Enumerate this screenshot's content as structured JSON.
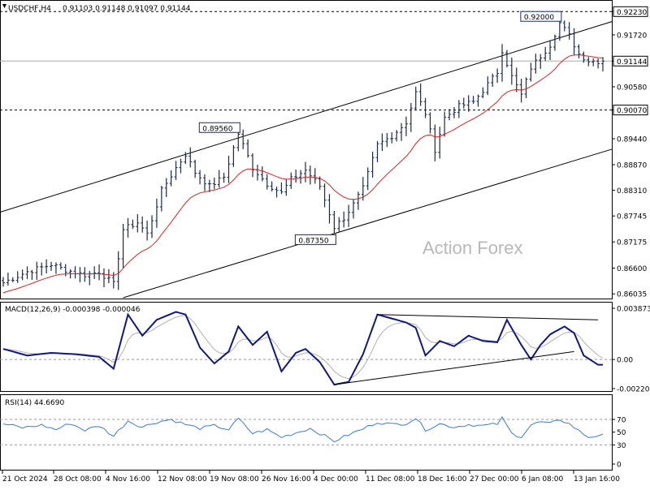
{
  "chart_data": {
    "type": "candlestick",
    "symbol_label": "USDCHF,H4",
    "ohlc_label": "0.91103 0.91148 0.91097 0.91144",
    "watermark": "Action Forex",
    "price_axis": {
      "min": 0.8595,
      "max": 0.9236,
      "ticks": [
        "0.92230",
        "0.91720",
        "0.91144",
        "0.90580",
        "0.90070",
        "0.89440",
        "0.88870",
        "0.88310",
        "0.87745",
        "0.87175",
        "0.86600",
        "0.86035"
      ],
      "current_price": "0.91144",
      "resistance_level": "0.92230",
      "support_level": "0.90070"
    },
    "x_axis": {
      "ticks": [
        "21 Oct 2024",
        "28 Oct 08:00",
        "4 Nov 16:00",
        "12 Nov 08:00",
        "19 Nov 08:00",
        "26 Nov 16:00",
        "4 Dec 00:00",
        "11 Dec 08:00",
        "18 Dec 16:00",
        "27 Dec 00:00",
        "6 Jan 08:00",
        "13 Jan 16:00"
      ]
    },
    "annotations": [
      {
        "text": "0.89560",
        "price": 0.8956,
        "bar": 49
      },
      {
        "text": "0.87350",
        "price": 0.8735,
        "bar": 69
      },
      {
        "text": "0.92000",
        "price": 0.92,
        "bar": 116
      }
    ],
    "price_keypoints": [
      [
        0,
        0.8628
      ],
      [
        5,
        0.8652
      ],
      [
        10,
        0.8668
      ],
      [
        13,
        0.8656
      ],
      [
        17,
        0.8645
      ],
      [
        20,
        0.8652
      ],
      [
        23,
        0.8625
      ],
      [
        25,
        0.8745
      ],
      [
        28,
        0.876
      ],
      [
        30,
        0.8735
      ],
      [
        33,
        0.883
      ],
      [
        36,
        0.888
      ],
      [
        38,
        0.891
      ],
      [
        40,
        0.887
      ],
      [
        43,
        0.884
      ],
      [
        46,
        0.886
      ],
      [
        49,
        0.8955
      ],
      [
        52,
        0.888
      ],
      [
        55,
        0.8845
      ],
      [
        58,
        0.8825
      ],
      [
        60,
        0.8855
      ],
      [
        63,
        0.8875
      ],
      [
        66,
        0.884
      ],
      [
        69,
        0.875
      ],
      [
        71,
        0.877
      ],
      [
        73,
        0.88
      ],
      [
        75,
        0.8835
      ],
      [
        78,
        0.893
      ],
      [
        81,
        0.895
      ],
      [
        84,
        0.898
      ],
      [
        86,
        0.9045
      ],
      [
        88,
        0.9
      ],
      [
        90,
        0.892
      ],
      [
        92,
        0.899
      ],
      [
        95,
        0.9015
      ],
      [
        98,
        0.9025
      ],
      [
        100,
        0.905
      ],
      [
        103,
        0.909
      ],
      [
        104,
        0.9138
      ],
      [
        106,
        0.908
      ],
      [
        108,
        0.904
      ],
      [
        110,
        0.91
      ],
      [
        112,
        0.9125
      ],
      [
        114,
        0.915
      ],
      [
        116,
        0.9198
      ],
      [
        118,
        0.917
      ],
      [
        120,
        0.913
      ],
      [
        122,
        0.9115
      ],
      [
        124,
        0.9114
      ]
    ],
    "channel_lines": [
      {
        "from": [
          0,
          0.8785
        ],
        "to": [
          125,
          0.9195
        ]
      },
      {
        "from": [
          25,
          0.8595
        ],
        "to": [
          125,
          0.8915
        ]
      }
    ],
    "macd": {
      "label": "MACD(12,26,9) -0.000398 -0.000046",
      "ticks": [
        "0.003873",
        "0.00",
        "-0.002201"
      ],
      "min": -0.002201,
      "max": 0.003873,
      "keypoints": [
        [
          0,
          0.0008
        ],
        [
          5,
          0.0003
        ],
        [
          10,
          0.0005
        ],
        [
          15,
          0.0004
        ],
        [
          20,
          0.0002
        ],
        [
          23,
          -0.0007
        ],
        [
          26,
          0.0034
        ],
        [
          29,
          0.0018
        ],
        [
          32,
          0.003
        ],
        [
          36,
          0.0036
        ],
        [
          38,
          0.0034
        ],
        [
          41,
          0.0009
        ],
        [
          44,
          -0.0003
        ],
        [
          47,
          0.0006
        ],
        [
          49,
          0.0025
        ],
        [
          52,
          0.0011
        ],
        [
          55,
          0.0021
        ],
        [
          58,
          -0.0009
        ],
        [
          61,
          0.0005
        ],
        [
          63,
          0.0008
        ],
        [
          66,
          -0.0002
        ],
        [
          69,
          -0.0019
        ],
        [
          72,
          -0.0017
        ],
        [
          75,
          0.0004
        ],
        [
          78,
          0.0034
        ],
        [
          81,
          0.0031
        ],
        [
          84,
          0.0028
        ],
        [
          86,
          0.0024
        ],
        [
          88,
          0.0003
        ],
        [
          91,
          0.0014
        ],
        [
          94,
          0.001
        ],
        [
          97,
          0.0018
        ],
        [
          100,
          0.0014
        ],
        [
          103,
          0.0013
        ],
        [
          105,
          0.003
        ],
        [
          108,
          0.0011
        ],
        [
          110,
          0.0
        ],
        [
          112,
          0.0011
        ],
        [
          114,
          0.0019
        ],
        [
          117,
          0.0025
        ],
        [
          119,
          0.002
        ],
        [
          121,
          0.0003
        ],
        [
          124,
          -0.0004
        ]
      ],
      "trendlines": [
        {
          "from": [
            69,
            -0.0019
          ],
          "to": [
            119,
            0.0006
          ]
        },
        {
          "from": [
            78,
            0.0034
          ],
          "to": [
            124,
            0.003
          ]
        }
      ]
    },
    "rsi": {
      "label": "RSI(14) 44.6690",
      "ticks": [
        "70",
        "50",
        "30",
        "0"
      ],
      "min": 0,
      "max": 100,
      "keypoints": [
        [
          0,
          63
        ],
        [
          4,
          57
        ],
        [
          8,
          61
        ],
        [
          11,
          54
        ],
        [
          14,
          64
        ],
        [
          17,
          53
        ],
        [
          20,
          60
        ],
        [
          23,
          44
        ],
        [
          26,
          68
        ],
        [
          29,
          58
        ],
        [
          32,
          66
        ],
        [
          35,
          70
        ],
        [
          38,
          62
        ],
        [
          41,
          56
        ],
        [
          44,
          60
        ],
        [
          47,
          54
        ],
        [
          49,
          71
        ],
        [
          52,
          48
        ],
        [
          55,
          54
        ],
        [
          58,
          42
        ],
        [
          61,
          49
        ],
        [
          64,
          56
        ],
        [
          66,
          48
        ],
        [
          69,
          36
        ],
        [
          72,
          46
        ],
        [
          75,
          55
        ],
        [
          78,
          66
        ],
        [
          81,
          62
        ],
        [
          84,
          64
        ],
        [
          86,
          72
        ],
        [
          88,
          54
        ],
        [
          91,
          63
        ],
        [
          94,
          58
        ],
        [
          97,
          62
        ],
        [
          100,
          60
        ],
        [
          103,
          63
        ],
        [
          104,
          72
        ],
        [
          106,
          48
        ],
        [
          108,
          43
        ],
        [
          110,
          61
        ],
        [
          112,
          66
        ],
        [
          114,
          63
        ],
        [
          116,
          70
        ],
        [
          118,
          63
        ],
        [
          120,
          52
        ],
        [
          122,
          42
        ],
        [
          124,
          45
        ]
      ]
    }
  }
}
